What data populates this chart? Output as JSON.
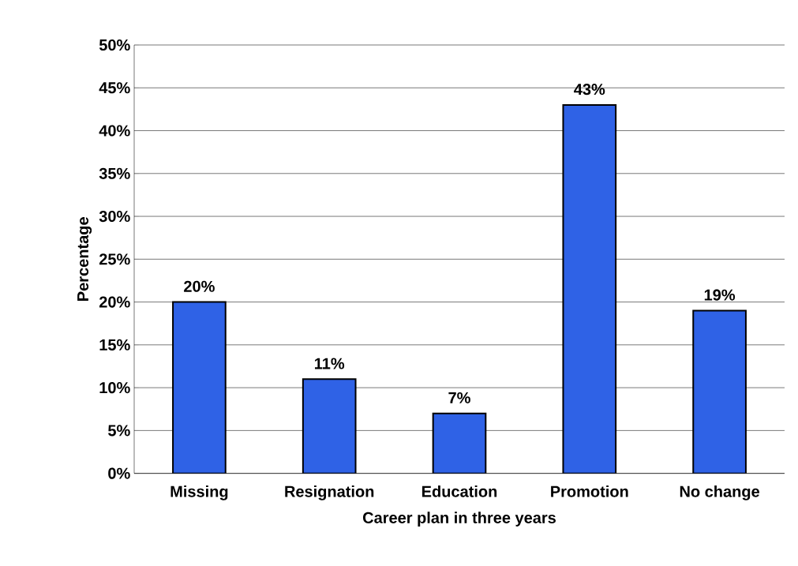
{
  "chart_data": {
    "type": "bar",
    "xlabel": "Career plan in three years",
    "ylabel": "Percentage",
    "categories": [
      "Missing",
      "Resignation",
      "Education",
      "Promotion",
      "No change"
    ],
    "values": [
      20,
      11,
      7,
      43,
      19
    ],
    "value_labels": [
      "20%",
      "11%",
      "7%",
      "43%",
      "19%"
    ],
    "color": "#2f62e6",
    "ylim": [
      0,
      50
    ],
    "yticks": [
      {
        "value": 0,
        "label": "0%"
      },
      {
        "value": 5,
        "label": "5%"
      },
      {
        "value": 10,
        "label": "10%"
      },
      {
        "value": 15,
        "label": "15%"
      },
      {
        "value": 20,
        "label": "20%"
      },
      {
        "value": 25,
        "label": "25%"
      },
      {
        "value": 30,
        "label": "30%"
      },
      {
        "value": 35,
        "label": "35%"
      },
      {
        "value": 40,
        "label": "40%"
      },
      {
        "value": 45,
        "label": "45%"
      },
      {
        "value": 50,
        "label": "50%"
      }
    ],
    "grid": "y"
  }
}
